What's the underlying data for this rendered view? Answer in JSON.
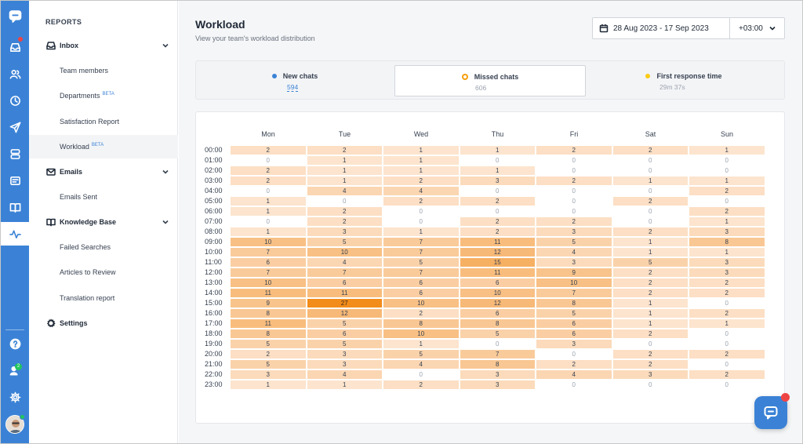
{
  "sidebar": {
    "heading": "REPORTS",
    "inbox": {
      "label": "Inbox",
      "items": [
        {
          "label": "Team members",
          "beta": ""
        },
        {
          "label": "Departments",
          "beta": "BETA"
        },
        {
          "label": "Satisfaction Report",
          "beta": ""
        },
        {
          "label": "Workload",
          "beta": "BETA"
        }
      ]
    },
    "emails": {
      "label": "Emails",
      "items": [
        {
          "label": "Emails Sent"
        }
      ]
    },
    "knowledge": {
      "label": "Knowledge Base",
      "items": [
        {
          "label": "Failed Searches"
        },
        {
          "label": "Articles to Review"
        },
        {
          "label": "Translation report"
        }
      ]
    },
    "settings": {
      "label": "Settings"
    },
    "team_badge": "2"
  },
  "header": {
    "title": "Workload",
    "subtitle": "View your team's workload distribution",
    "date_range": "28 Aug 2023 - 17 Sep 2023",
    "timezone": "+03:00"
  },
  "metrics": [
    {
      "label": "New chats",
      "value": "594",
      "dot": "#3b82d6"
    },
    {
      "label": "Missed chats",
      "value": "606",
      "dot": "#f59e0b"
    },
    {
      "label": "First response time",
      "value": "29m 37s",
      "dot": "#facc15"
    }
  ],
  "chart_data": {
    "type": "heatmap",
    "x": [
      "Mon",
      "Tue",
      "Wed",
      "Thu",
      "Fri",
      "Sat",
      "Sun"
    ],
    "y": [
      "00:00",
      "01:00",
      "02:00",
      "03:00",
      "04:00",
      "05:00",
      "06:00",
      "07:00",
      "08:00",
      "09:00",
      "10:00",
      "11:00",
      "12:00",
      "13:00",
      "14:00",
      "15:00",
      "16:00",
      "17:00",
      "18:00",
      "19:00",
      "20:00",
      "21:00",
      "22:00",
      "23:00"
    ],
    "values": [
      [
        2,
        2,
        1,
        1,
        2,
        2,
        1
      ],
      [
        0,
        1,
        1,
        0,
        0,
        0,
        0
      ],
      [
        2,
        1,
        1,
        1,
        0,
        0,
        0
      ],
      [
        2,
        1,
        2,
        3,
        2,
        1,
        1
      ],
      [
        0,
        4,
        4,
        0,
        0,
        0,
        2
      ],
      [
        1,
        0,
        2,
        2,
        0,
        2,
        0
      ],
      [
        1,
        2,
        0,
        0,
        0,
        0,
        2
      ],
      [
        0,
        2,
        0,
        2,
        2,
        0,
        1
      ],
      [
        1,
        3,
        1,
        2,
        3,
        2,
        3
      ],
      [
        10,
        5,
        7,
        11,
        5,
        1,
        8
      ],
      [
        7,
        10,
        7,
        12,
        4,
        1,
        1
      ],
      [
        6,
        4,
        5,
        15,
        3,
        5,
        3
      ],
      [
        7,
        7,
        7,
        11,
        9,
        2,
        3
      ],
      [
        10,
        6,
        6,
        6,
        10,
        2,
        2
      ],
      [
        11,
        11,
        6,
        10,
        7,
        2,
        2
      ],
      [
        9,
        27,
        10,
        12,
        8,
        1,
        0
      ],
      [
        8,
        12,
        2,
        6,
        5,
        1,
        2
      ],
      [
        11,
        5,
        8,
        8,
        6,
        1,
        1
      ],
      [
        8,
        6,
        10,
        5,
        6,
        2,
        0
      ],
      [
        5,
        5,
        1,
        0,
        3,
        0,
        0
      ],
      [
        2,
        3,
        5,
        7,
        0,
        2,
        2
      ],
      [
        5,
        3,
        4,
        8,
        2,
        2,
        0
      ],
      [
        3,
        4,
        0,
        3,
        4,
        3,
        2
      ],
      [
        1,
        1,
        2,
        3,
        0,
        0,
        0
      ]
    ],
    "colors": {
      "low": "#fdebdc",
      "high": "#f28c1a",
      "zero": "#ffffff"
    }
  }
}
